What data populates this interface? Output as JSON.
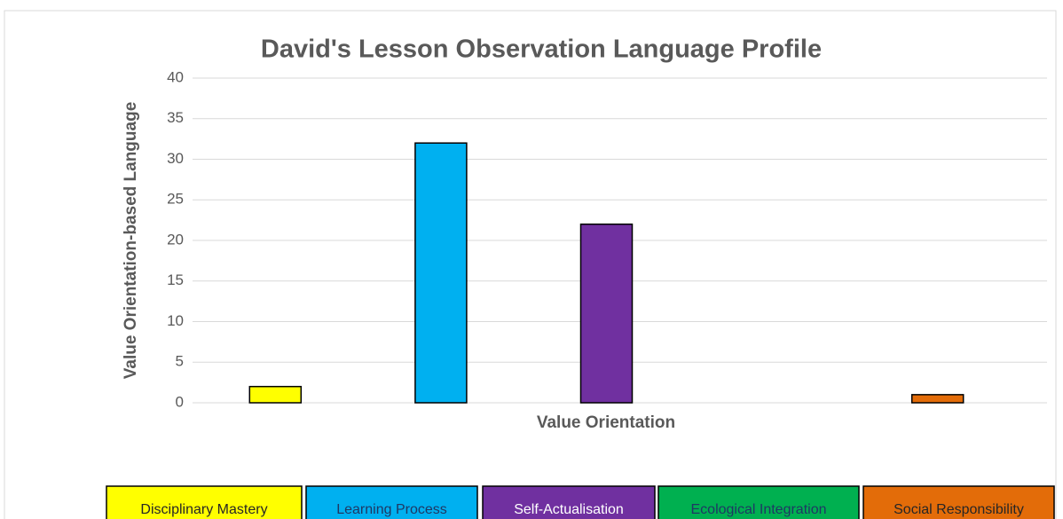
{
  "chart_data": {
    "type": "bar",
    "title": "David's Lesson Observation Language Profile",
    "x_label": "Value Orientation",
    "y_label": "Value Orientation-based Language",
    "categories": [
      "Disciplinary Mastery",
      "Learning Process",
      "Self-Actualisation",
      "Ecological Integration",
      "Social Responsibility"
    ],
    "values": [
      2,
      32,
      22,
      0,
      1
    ],
    "colors": [
      "#ffff00",
      "#00b0f0",
      "#7030a0",
      "#00b050",
      "#e36c09"
    ],
    "ylim": [
      0,
      40
    ],
    "yticks": [
      0,
      5,
      10,
      15,
      20,
      25,
      30,
      35,
      40
    ],
    "grid": true
  }
}
